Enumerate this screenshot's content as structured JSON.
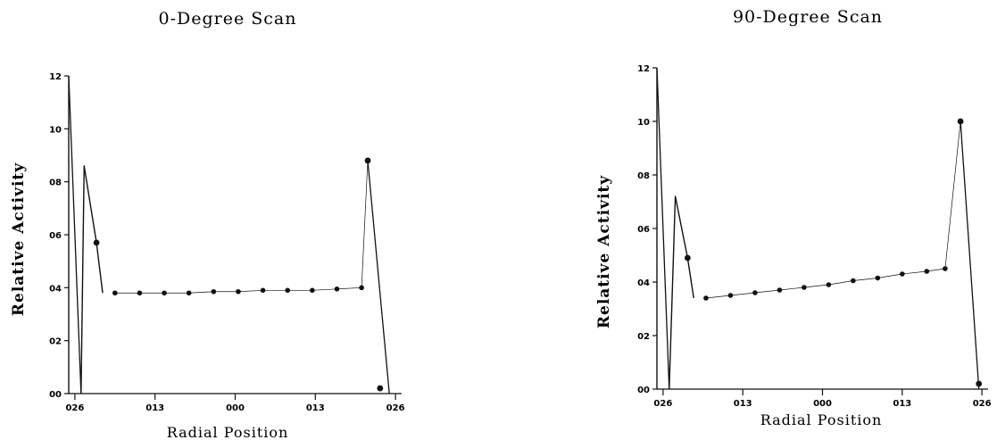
{
  "chart_data": [
    {
      "type": "line",
      "title": "0-Degree Scan",
      "xlabel": "Radial Position",
      "ylabel": "Relative Activity",
      "xlim": [
        -0.27,
        0.27
      ],
      "ylim": [
        0.0,
        1.2
      ],
      "yticks": [
        0.0,
        0.2,
        0.4,
        0.6,
        0.8,
        1.0,
        1.2
      ],
      "ytick_labels": [
        "00",
        "02",
        "04",
        "06",
        "08",
        "10",
        "12"
      ],
      "xticks": [
        -0.26,
        -0.13,
        0.0,
        0.13,
        0.26
      ],
      "xtick_labels": [
        "026",
        "013",
        "000",
        "013",
        "026"
      ],
      "grid": false,
      "legend": "none",
      "series": [
        {
          "edge_left": [
            [
              -0.27,
              1.2
            ],
            [
              -0.25,
              0.0
            ]
          ],
          "peak_left": [
            [
              -0.245,
              0.86
            ],
            [
              -0.225,
              0.57
            ],
            [
              -0.215,
              0.38
            ]
          ],
          "edge_right": [
            [
              0.215,
              0.88
            ],
            [
              0.25,
              0.0
            ]
          ],
          "points": [
            [
              -0.195,
              0.38
            ],
            [
              -0.155,
              0.38
            ],
            [
              -0.115,
              0.38
            ],
            [
              -0.075,
              0.38
            ],
            [
              -0.035,
              0.385
            ],
            [
              0.005,
              0.385
            ],
            [
              0.045,
              0.39
            ],
            [
              0.085,
              0.39
            ],
            [
              0.125,
              0.39
            ],
            [
              0.165,
              0.395
            ],
            [
              0.205,
              0.4
            ]
          ],
          "highlighted": [
            [
              -0.225,
              0.57
            ],
            [
              0.215,
              0.88
            ],
            [
              0.235,
              0.02
            ]
          ]
        }
      ]
    },
    {
      "type": "line",
      "title": "90-Degree Scan",
      "xlabel": "Radial Position",
      "ylabel": "Relative Activity",
      "xlim": [
        -0.27,
        0.27
      ],
      "ylim": [
        0.0,
        1.2
      ],
      "yticks": [
        0.0,
        0.2,
        0.4,
        0.6,
        0.8,
        1.0,
        1.2
      ],
      "ytick_labels": [
        "00",
        "02",
        "04",
        "06",
        "08",
        "10",
        "12"
      ],
      "xticks": [
        -0.26,
        -0.13,
        0.0,
        0.13,
        0.26
      ],
      "xtick_labels": [
        "026",
        "013",
        "000",
        "013",
        "026"
      ],
      "grid": false,
      "legend": "none",
      "series": [
        {
          "edge_left": [
            [
              -0.27,
              1.2
            ],
            [
              -0.25,
              0.0
            ]
          ],
          "peak_left": [
            [
              -0.24,
              0.72
            ],
            [
              -0.22,
              0.49
            ],
            [
              -0.21,
              0.34
            ]
          ],
          "edge_right": [
            [
              0.225,
              1.0
            ],
            [
              0.255,
              0.0
            ]
          ],
          "points": [
            [
              -0.19,
              0.34
            ],
            [
              -0.15,
              0.35
            ],
            [
              -0.11,
              0.36
            ],
            [
              -0.07,
              0.37
            ],
            [
              -0.03,
              0.38
            ],
            [
              0.01,
              0.39
            ],
            [
              0.05,
              0.405
            ],
            [
              0.09,
              0.415
            ],
            [
              0.13,
              0.43
            ],
            [
              0.17,
              0.44
            ],
            [
              0.2,
              0.45
            ]
          ],
          "highlighted": [
            [
              -0.22,
              0.49
            ],
            [
              0.225,
              1.0
            ],
            [
              0.255,
              0.02
            ]
          ]
        }
      ]
    }
  ]
}
